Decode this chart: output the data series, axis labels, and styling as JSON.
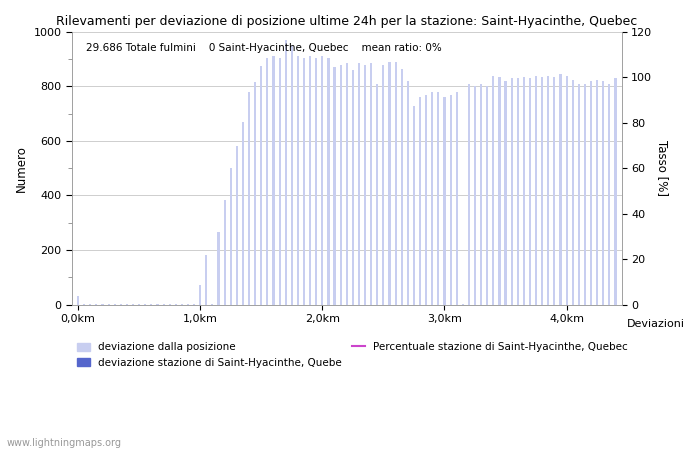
{
  "title": "Rilevamenti per deviazione di posizione ultime 24h per la stazione: Saint-Hyacinthe, Quebec",
  "subtitle": "29.686 Totale fulmini    0 Saint-Hyacinthe, Quebec    mean ratio: 0%",
  "ylabel_left": "Numero",
  "ylabel_right": "Tasso [%]",
  "xlabel_right": "Deviazioni",
  "ylim_left": [
    0,
    1000
  ],
  "ylim_right": [
    0,
    120
  ],
  "yticks_left": [
    0,
    200,
    400,
    600,
    800,
    1000
  ],
  "yticks_right": [
    0,
    20,
    40,
    60,
    80,
    100,
    120
  ],
  "bar_color": "#c8cef0",
  "bar_color2": "#5566cc",
  "line_color": "#cc44cc",
  "background_color": "#ffffff",
  "grid_color": "#bbbbbb",
  "watermark": "www.lightningmaps.org",
  "xtick_labels": [
    "0,0km",
    "1,0km",
    "2,0km",
    "3,0km",
    "4,0km"
  ],
  "bar_values": [
    30,
    2,
    2,
    2,
    2,
    2,
    2,
    2,
    2,
    2,
    2,
    2,
    2,
    2,
    2,
    2,
    2,
    2,
    2,
    2,
    70,
    180,
    2,
    265,
    385,
    500,
    580,
    670,
    780,
    815,
    875,
    905,
    910,
    905,
    970,
    950,
    910,
    905,
    910,
    905,
    910,
    905,
    870,
    880,
    885,
    860,
    885,
    880,
    885,
    810,
    880,
    890,
    890,
    865,
    820,
    730,
    760,
    770,
    780,
    780,
    760,
    770,
    780,
    2,
    810,
    800,
    810,
    800,
    840,
    835,
    820,
    830,
    830,
    835,
    830,
    840,
    835,
    840,
    835,
    845,
    840,
    825,
    810,
    810,
    820,
    825,
    820,
    810,
    830
  ],
  "legend_label1": "deviazione dalla posizione",
  "legend_label2": "deviazione stazione di Saint-Hyacinthe, Quebe",
  "legend_label3": "Percentuale stazione di Saint-Hyacinthe, Quebec",
  "num_bars": 89,
  "bar_width": 0.35,
  "figsize": [
    7.0,
    4.5
  ],
  "dpi": 100
}
